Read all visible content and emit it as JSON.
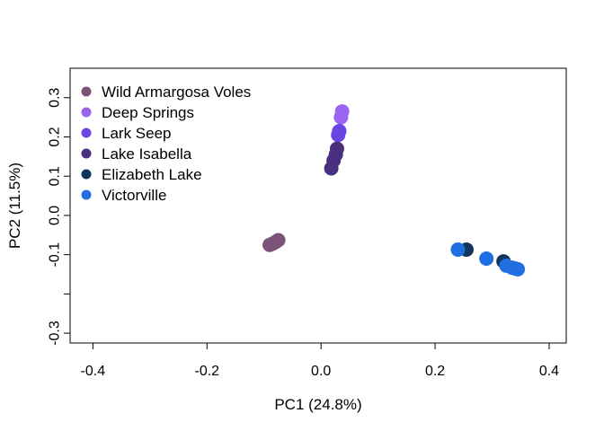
{
  "chart_data": {
    "type": "scatter",
    "xlabel": "PC1 (24.8%)",
    "ylabel": "PC2 (11.5%)",
    "xlim": [
      -0.44,
      0.43
    ],
    "ylim": [
      -0.325,
      0.375
    ],
    "x_ticks": [
      {
        "value": -0.4,
        "label": "-0.4"
      },
      {
        "value": -0.2,
        "label": "-0.2"
      },
      {
        "value": 0.0,
        "label": "0.0"
      },
      {
        "value": 0.2,
        "label": "0.2"
      },
      {
        "value": 0.4,
        "label": "0.4"
      }
    ],
    "y_ticks": [
      {
        "value": -0.3,
        "label": "-0.3"
      },
      {
        "value": -0.2,
        "label": ""
      },
      {
        "value": -0.1,
        "label": "-0.1"
      },
      {
        "value": 0.0,
        "label": "0.0"
      },
      {
        "value": 0.1,
        "label": "0.1"
      },
      {
        "value": 0.2,
        "label": "0.2"
      },
      {
        "value": 0.3,
        "label": "0.3"
      }
    ],
    "legend_position": "top-left",
    "grid": false,
    "series": [
      {
        "name": "Wild Armargosa Voles",
        "color": "#7b5278",
        "points": [
          [
            -0.09,
            -0.075
          ],
          [
            -0.085,
            -0.072
          ],
          [
            -0.08,
            -0.068
          ],
          [
            -0.075,
            -0.063
          ]
        ]
      },
      {
        "name": "Deep Springs",
        "color": "#9a63f2",
        "points": [
          [
            0.037,
            0.265
          ],
          [
            0.035,
            0.25
          ]
        ]
      },
      {
        "name": "Lark Seep",
        "color": "#6a45e4",
        "points": [
          [
            0.032,
            0.215
          ],
          [
            0.03,
            0.205
          ]
        ]
      },
      {
        "name": "Lake Isabella",
        "color": "#4a2f7e",
        "points": [
          [
            0.028,
            0.17
          ],
          [
            0.026,
            0.155
          ],
          [
            0.022,
            0.14
          ],
          [
            0.018,
            0.12
          ]
        ]
      },
      {
        "name": "Elizabeth Lake",
        "color": "#12355e",
        "points": [
          [
            0.255,
            -0.087
          ],
          [
            0.32,
            -0.117
          ]
        ]
      },
      {
        "name": "Victorville",
        "color": "#1f6fe0",
        "points": [
          [
            0.24,
            -0.087
          ],
          [
            0.29,
            -0.11
          ],
          [
            0.325,
            -0.128
          ],
          [
            0.335,
            -0.133
          ],
          [
            0.34,
            -0.135
          ],
          [
            0.345,
            -0.137
          ]
        ]
      }
    ]
  }
}
